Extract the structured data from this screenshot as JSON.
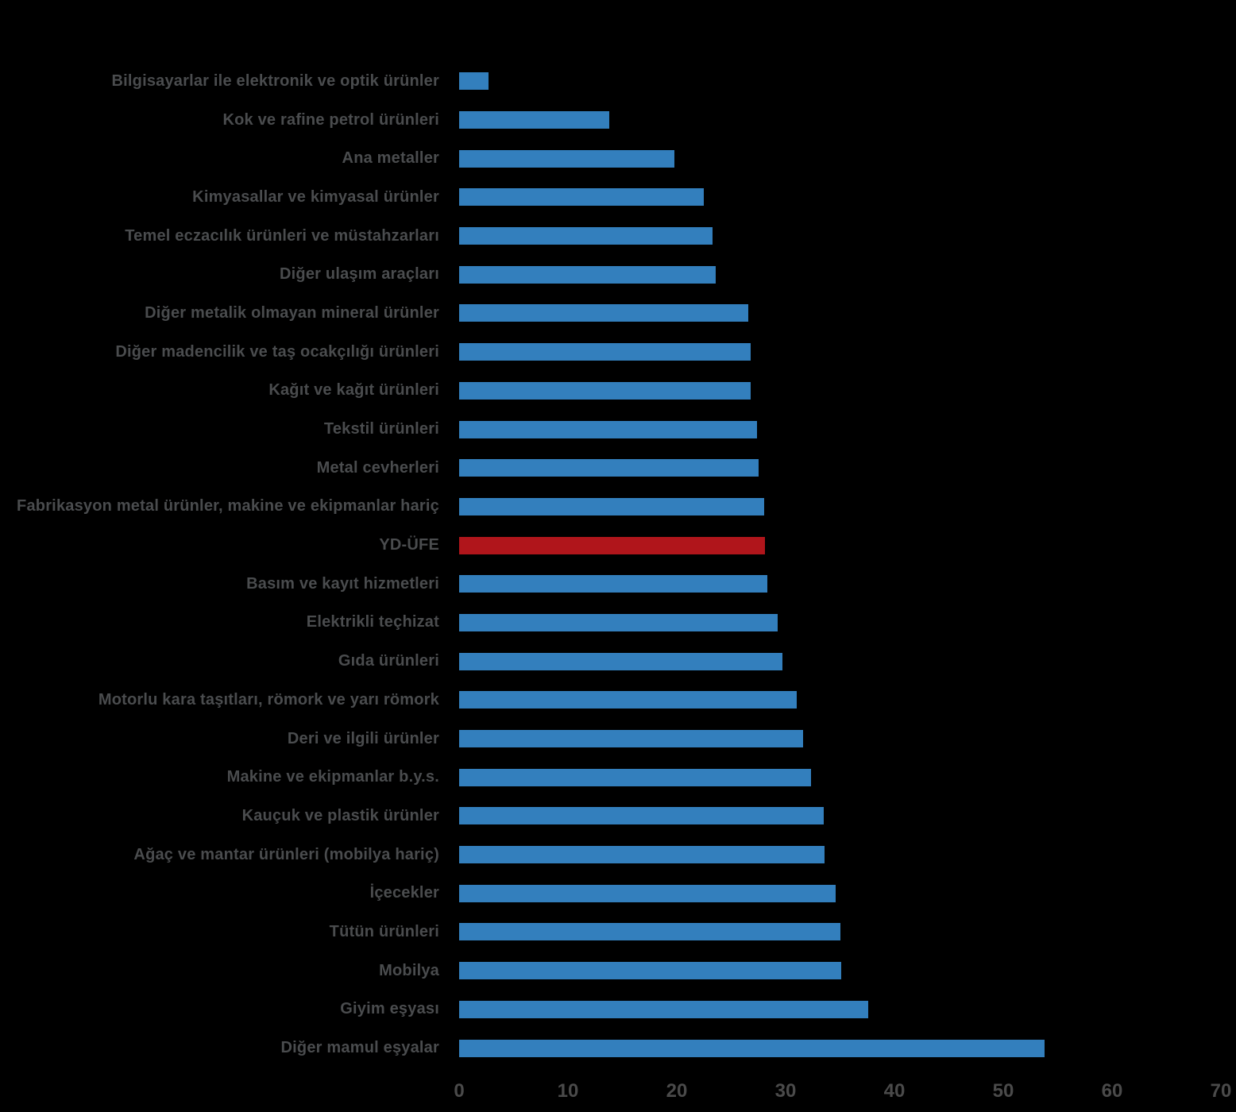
{
  "chart_data": {
    "type": "bar",
    "orientation": "horizontal",
    "title": "",
    "xlabel": "",
    "ylabel": "",
    "xlim": [
      0,
      70
    ],
    "x_ticks": [
      0,
      10,
      20,
      30,
      40,
      50,
      60,
      70
    ],
    "grid": false,
    "legend": false,
    "categories": [
      "Bilgisayarlar ile elektronik ve optik ürünler",
      "Kok ve rafine petrol ürünleri",
      "Ana metaller",
      "Kimyasallar ve kimyasal ürünler",
      "Temel eczacılık ürünleri ve müstahzarları",
      "Diğer ulaşım araçları",
      "Diğer metalik olmayan mineral ürünler",
      "Diğer madencilik ve taş ocakçılığı ürünleri",
      "Kağıt ve kağıt ürünleri",
      "Tekstil ürünleri",
      "Metal cevherleri",
      "Fabrikasyon metal ürünler, makine ve ekipmanlar hariç",
      "YD-ÜFE",
      "Basım ve kayıt hizmetleri",
      "Elektrikli teçhizat",
      "Gıda ürünleri",
      "Motorlu kara taşıtları, römork ve yarı römork",
      "Deri ve ilgili ürünler",
      "Makine ve ekipmanlar b.y.s.",
      "Kauçuk ve plastik ürünler",
      "Ağaç ve mantar ürünleri (mobilya hariç)",
      "İçecekler",
      "Tütün ürünleri",
      "Mobilya",
      "Giyim eşyası",
      "Diğer mamul eşyalar"
    ],
    "values": [
      2.7,
      13.8,
      19.8,
      22.5,
      23.3,
      23.6,
      26.6,
      26.8,
      26.8,
      27.4,
      27.5,
      28.0,
      28.1,
      28.3,
      29.3,
      29.7,
      31.0,
      31.6,
      32.3,
      33.5,
      33.6,
      34.6,
      35.0,
      35.1,
      37.6,
      53.8
    ],
    "bar_color": "#337FBD",
    "highlight": {
      "category": "YD-ÜFE",
      "color": "#B0151B"
    }
  },
  "style": {
    "background": "#000000",
    "label_color": "#4A4C4E",
    "tick_color": "#4A4A4A"
  }
}
